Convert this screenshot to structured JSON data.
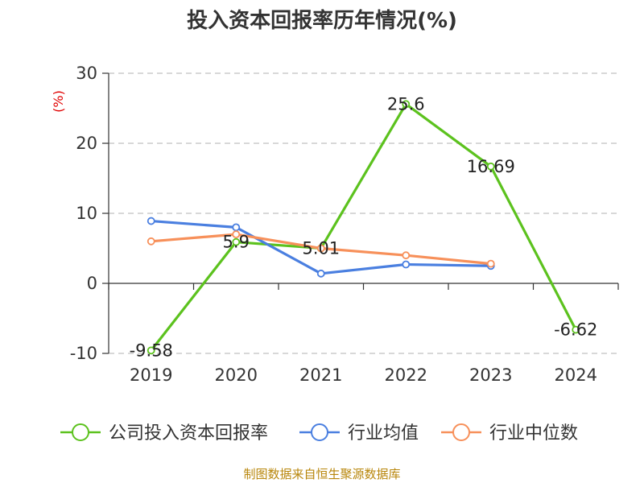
{
  "colors": {
    "company": "#5cc21e",
    "industry_avg": "#4a7fe0",
    "industry_median": "#f7905a",
    "grid": "#cccccc",
    "axis": "#333333",
    "ylabel": "#e00000",
    "source": "#b8860b"
  },
  "source_text": "制图数据来自恒生聚源数据库",
  "chart_data": {
    "type": "line",
    "title": "投入资本回报率历年情况(%)",
    "xlabel": "",
    "ylabel": "(%)",
    "ylim": [
      -10,
      30
    ],
    "yticks": [
      -10,
      0,
      10,
      20,
      30
    ],
    "grid": "horizontal-dashed",
    "legend_position": "bottom",
    "categories": [
      "2019",
      "2020",
      "2021",
      "2022",
      "2023",
      "2024"
    ],
    "series": [
      {
        "name": "公司投入资本回报率",
        "color_key": "company",
        "values": [
          -9.58,
          5.9,
          5.01,
          25.6,
          16.69,
          -6.62
        ],
        "labels": [
          "-9.58",
          "5.9",
          "5.01",
          "25.6",
          "16.69",
          "-6.62"
        ]
      },
      {
        "name": "行业均值",
        "color_key": "industry_avg",
        "values": [
          8.9,
          8.0,
          1.4,
          2.7,
          2.5,
          null
        ]
      },
      {
        "name": "行业中位数",
        "color_key": "industry_median",
        "values": [
          6.0,
          7.0,
          5.0,
          4.0,
          2.8,
          null
        ]
      }
    ]
  }
}
